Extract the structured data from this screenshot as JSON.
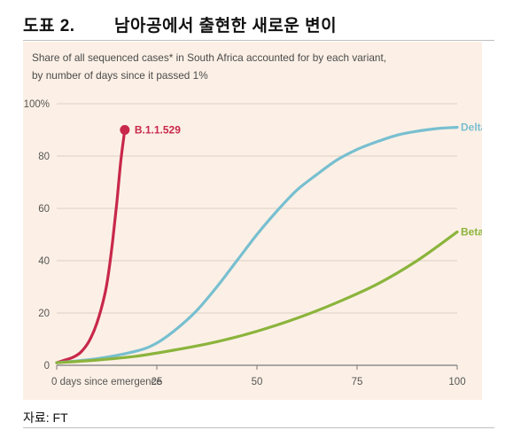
{
  "header": {
    "label": "도표 2.",
    "title": "남아공에서 출현한 새로운 변이"
  },
  "source": "자료: FT",
  "chart_data": {
    "type": "line",
    "title_lines": [
      "Share of all sequenced cases* in South Africa accounted for by each variant,",
      "by number of days since it passed 1%"
    ],
    "xlim": [
      0,
      100
    ],
    "ylim": [
      0,
      100
    ],
    "x_ticks": [
      {
        "value": 0,
        "label": "0 days since emergence"
      },
      {
        "value": 25,
        "label": "25"
      },
      {
        "value": 50,
        "label": "50"
      },
      {
        "value": 75,
        "label": "75"
      },
      {
        "value": 100,
        "label": "100"
      }
    ],
    "y_ticks": [
      {
        "value": 0,
        "label": "0"
      },
      {
        "value": 20,
        "label": "20"
      },
      {
        "value": 40,
        "label": "40"
      },
      {
        "value": 60,
        "label": "60"
      },
      {
        "value": 80,
        "label": "80"
      },
      {
        "value": 100,
        "label": "100%"
      }
    ],
    "grid": "horizontal",
    "series": [
      {
        "name": "B.1.1.529",
        "color": "#c8284a",
        "end_marker": true,
        "x": [
          0,
          2,
          4,
          6,
          8,
          10,
          12,
          13,
          14,
          15,
          16,
          17
        ],
        "y": [
          1,
          2,
          3,
          5,
          9,
          16,
          27,
          36,
          48,
          62,
          78,
          90
        ]
      },
      {
        "name": "Delta",
        "color": "#78bfd0",
        "end_marker": false,
        "x": [
          0,
          10,
          20,
          25,
          30,
          35,
          40,
          45,
          50,
          55,
          60,
          65,
          70,
          75,
          80,
          85,
          90,
          95,
          100
        ],
        "y": [
          1,
          2.5,
          5.5,
          8.5,
          14,
          21,
          30,
          40,
          50,
          59,
          67,
          73,
          78.5,
          82.5,
          85.5,
          88,
          89.5,
          90.5,
          91
        ]
      },
      {
        "name": "Beta",
        "color": "#8bb43c",
        "end_marker": false,
        "x": [
          0,
          10,
          20,
          30,
          40,
          50,
          60,
          70,
          80,
          90,
          100
        ],
        "y": [
          1,
          2,
          3.5,
          6,
          9,
          13,
          18,
          24,
          31,
          40,
          51
        ]
      }
    ]
  }
}
